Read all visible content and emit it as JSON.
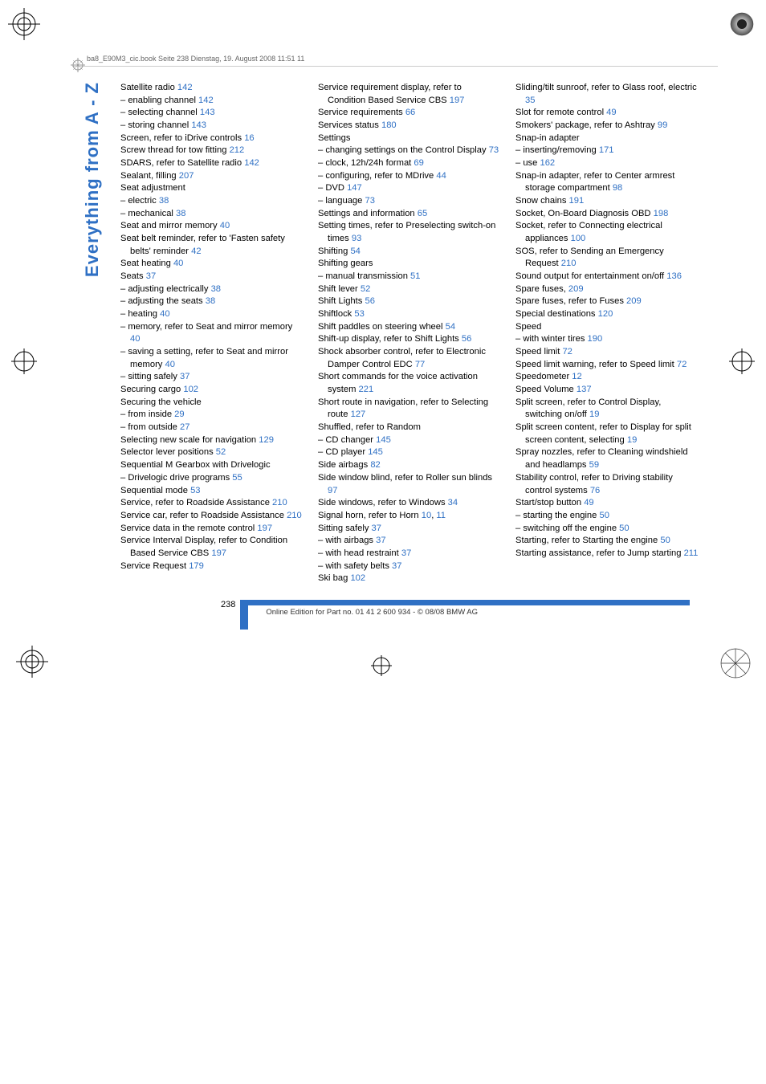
{
  "header": {
    "doc_info": "ba8_E90M3_cic.book  Seite 238  Dienstag, 19. August 2008  11:51 11"
  },
  "side_label": "Everything from A - Z",
  "page_number": "238",
  "footer": "Online Edition for Part no. 01 41 2 600 934 - © 08/08 BMW AG",
  "colors": {
    "link": "#2f70c4",
    "text": "#000000",
    "header_text": "#666666",
    "bar": "#2f70c4"
  },
  "columns": [
    [
      {
        "t": "Satellite radio ",
        "p": "142"
      },
      {
        "t": "– enabling channel ",
        "p": "142"
      },
      {
        "t": "– selecting channel ",
        "p": "143"
      },
      {
        "t": "– storing channel ",
        "p": "143"
      },
      {
        "t": "Screen, refer to iDrive controls ",
        "p": "16"
      },
      {
        "t": "Screw thread for tow fitting ",
        "p": "212"
      },
      {
        "t": "SDARS, refer to Satellite radio ",
        "p": "142"
      },
      {
        "t": "Sealant, filling ",
        "p": "207"
      },
      {
        "t": "Seat adjustment",
        "p": ""
      },
      {
        "t": "– electric ",
        "p": "38"
      },
      {
        "t": "– mechanical ",
        "p": "38"
      },
      {
        "t": "Seat and mirror memory ",
        "p": "40"
      },
      {
        "t": "Seat belt reminder, refer to 'Fasten safety belts' reminder ",
        "p": "42"
      },
      {
        "t": "Seat heating ",
        "p": "40"
      },
      {
        "t": "Seats ",
        "p": "37"
      },
      {
        "t": "– adjusting electrically ",
        "p": "38"
      },
      {
        "t": "– adjusting the seats ",
        "p": "38"
      },
      {
        "t": "– heating ",
        "p": "40"
      },
      {
        "t": "– memory, refer to Seat and mirror memory ",
        "p": "40"
      },
      {
        "t": "– saving a setting, refer to Seat and mirror memory ",
        "p": "40"
      },
      {
        "t": "– sitting safely ",
        "p": "37"
      },
      {
        "t": "Securing cargo ",
        "p": "102"
      },
      {
        "t": "Securing the vehicle",
        "p": ""
      },
      {
        "t": "– from inside ",
        "p": "29"
      },
      {
        "t": "– from outside ",
        "p": "27"
      },
      {
        "t": "Selecting new scale for navigation ",
        "p": "129"
      },
      {
        "t": "Selector lever positions ",
        "p": "52"
      },
      {
        "t": "Sequential M Gearbox with Drivelogic",
        "p": ""
      },
      {
        "t": "– Drivelogic drive programs ",
        "p": "55"
      },
      {
        "t": "Sequential mode ",
        "p": "53"
      },
      {
        "t": "Service, refer to Roadside Assistance ",
        "p": "210"
      },
      {
        "t": "Service car, refer to Roadside Assistance ",
        "p": "210"
      },
      {
        "t": "Service data in the remote control ",
        "p": "197"
      },
      {
        "t": "Service Interval Display, refer to Condition Based Service CBS ",
        "p": "197"
      },
      {
        "t": "Service Request ",
        "p": "179"
      }
    ],
    [
      {
        "t": "Service requirement display, refer to Condition Based Service CBS ",
        "p": "197"
      },
      {
        "t": "Service requirements ",
        "p": "66"
      },
      {
        "t": "Services status ",
        "p": "180"
      },
      {
        "t": "Settings",
        "p": ""
      },
      {
        "t": "– changing settings on the Control Display ",
        "p": "73"
      },
      {
        "t": "– clock, 12h/24h format ",
        "p": "69"
      },
      {
        "t": "– configuring, refer to MDrive ",
        "p": "44"
      },
      {
        "t": "– DVD ",
        "p": "147"
      },
      {
        "t": "– language ",
        "p": "73"
      },
      {
        "t": "Settings and information ",
        "p": "65"
      },
      {
        "t": "Setting times, refer to Preselecting switch-on times ",
        "p": "93"
      },
      {
        "t": "Shifting ",
        "p": "54"
      },
      {
        "t": "Shifting gears",
        "p": ""
      },
      {
        "t": "– manual transmission ",
        "p": "51"
      },
      {
        "t": "Shift lever ",
        "p": "52"
      },
      {
        "t": "Shift Lights ",
        "p": "56"
      },
      {
        "t": "Shiftlock ",
        "p": "53"
      },
      {
        "t": "Shift paddles on steering wheel ",
        "p": "54"
      },
      {
        "t": "Shift-up display, refer to Shift Lights ",
        "p": "56"
      },
      {
        "t": "Shock absorber control, refer to Electronic Damper Control EDC ",
        "p": "77"
      },
      {
        "t": "Short commands for the voice activation system ",
        "p": "221"
      },
      {
        "t": "Short route in navigation, refer to Selecting route ",
        "p": "127"
      },
      {
        "t": "Shuffled, refer to Random",
        "p": ""
      },
      {
        "t": "– CD changer ",
        "p": "145"
      },
      {
        "t": "– CD player ",
        "p": "145"
      },
      {
        "t": "Side airbags ",
        "p": "82"
      },
      {
        "t": "Side window blind, refer to Roller sun blinds ",
        "p": "97"
      },
      {
        "t": "Side windows, refer to Windows ",
        "p": "34"
      },
      {
        "t": "Signal horn, refer to Horn ",
        "p": "10",
        "p2": "11"
      },
      {
        "t": "Sitting safely ",
        "p": "37"
      },
      {
        "t": "– with airbags ",
        "p": "37"
      },
      {
        "t": "– with head restraint ",
        "p": "37"
      },
      {
        "t": "– with safety belts ",
        "p": "37"
      },
      {
        "t": "Ski bag ",
        "p": "102"
      }
    ],
    [
      {
        "t": "Sliding/tilt sunroof, refer to Glass roof, electric ",
        "p": "35"
      },
      {
        "t": "Slot for remote control ",
        "p": "49"
      },
      {
        "t": "Smokers' package, refer to Ashtray ",
        "p": "99"
      },
      {
        "t": "Snap-in adapter",
        "p": ""
      },
      {
        "t": "– inserting/removing ",
        "p": "171"
      },
      {
        "t": "– use ",
        "p": "162"
      },
      {
        "t": "Snap-in adapter, refer to Center armrest storage compartment ",
        "p": "98"
      },
      {
        "t": "Snow chains ",
        "p": "191"
      },
      {
        "t": "Socket, On-Board Diagnosis OBD ",
        "p": "198"
      },
      {
        "t": "Socket, refer to Connecting electrical appliances ",
        "p": "100"
      },
      {
        "t": "SOS, refer to Sending an Emergency Request ",
        "p": "210"
      },
      {
        "t": "Sound output for entertainment on/off ",
        "p": "136"
      },
      {
        "t": "Spare fuses, ",
        "p": "209"
      },
      {
        "t": "Spare fuses, refer to Fuses ",
        "p": "209"
      },
      {
        "t": "Special destinations ",
        "p": "120"
      },
      {
        "t": "Speed",
        "p": ""
      },
      {
        "t": "– with winter tires ",
        "p": "190"
      },
      {
        "t": "Speed limit ",
        "p": "72"
      },
      {
        "t": "Speed limit warning, refer to Speed limit ",
        "p": "72"
      },
      {
        "t": "Speedometer ",
        "p": "12"
      },
      {
        "t": "Speed Volume ",
        "p": "137"
      },
      {
        "t": "Split screen, refer to Control Display, switching on/off ",
        "p": "19"
      },
      {
        "t": "Split screen content, refer to Display for split screen content, selecting ",
        "p": "19"
      },
      {
        "t": "Spray nozzles, refer to Cleaning windshield and headlamps ",
        "p": "59"
      },
      {
        "t": "Stability control, refer to Driving stability control systems ",
        "p": "76"
      },
      {
        "t": "Start/stop button ",
        "p": "49"
      },
      {
        "t": "– starting the engine ",
        "p": "50"
      },
      {
        "t": "– switching off the engine ",
        "p": "50"
      },
      {
        "t": "Starting, refer to Starting the engine ",
        "p": "50"
      },
      {
        "t": "Starting assistance, refer to Jump starting ",
        "p": "211"
      }
    ]
  ]
}
